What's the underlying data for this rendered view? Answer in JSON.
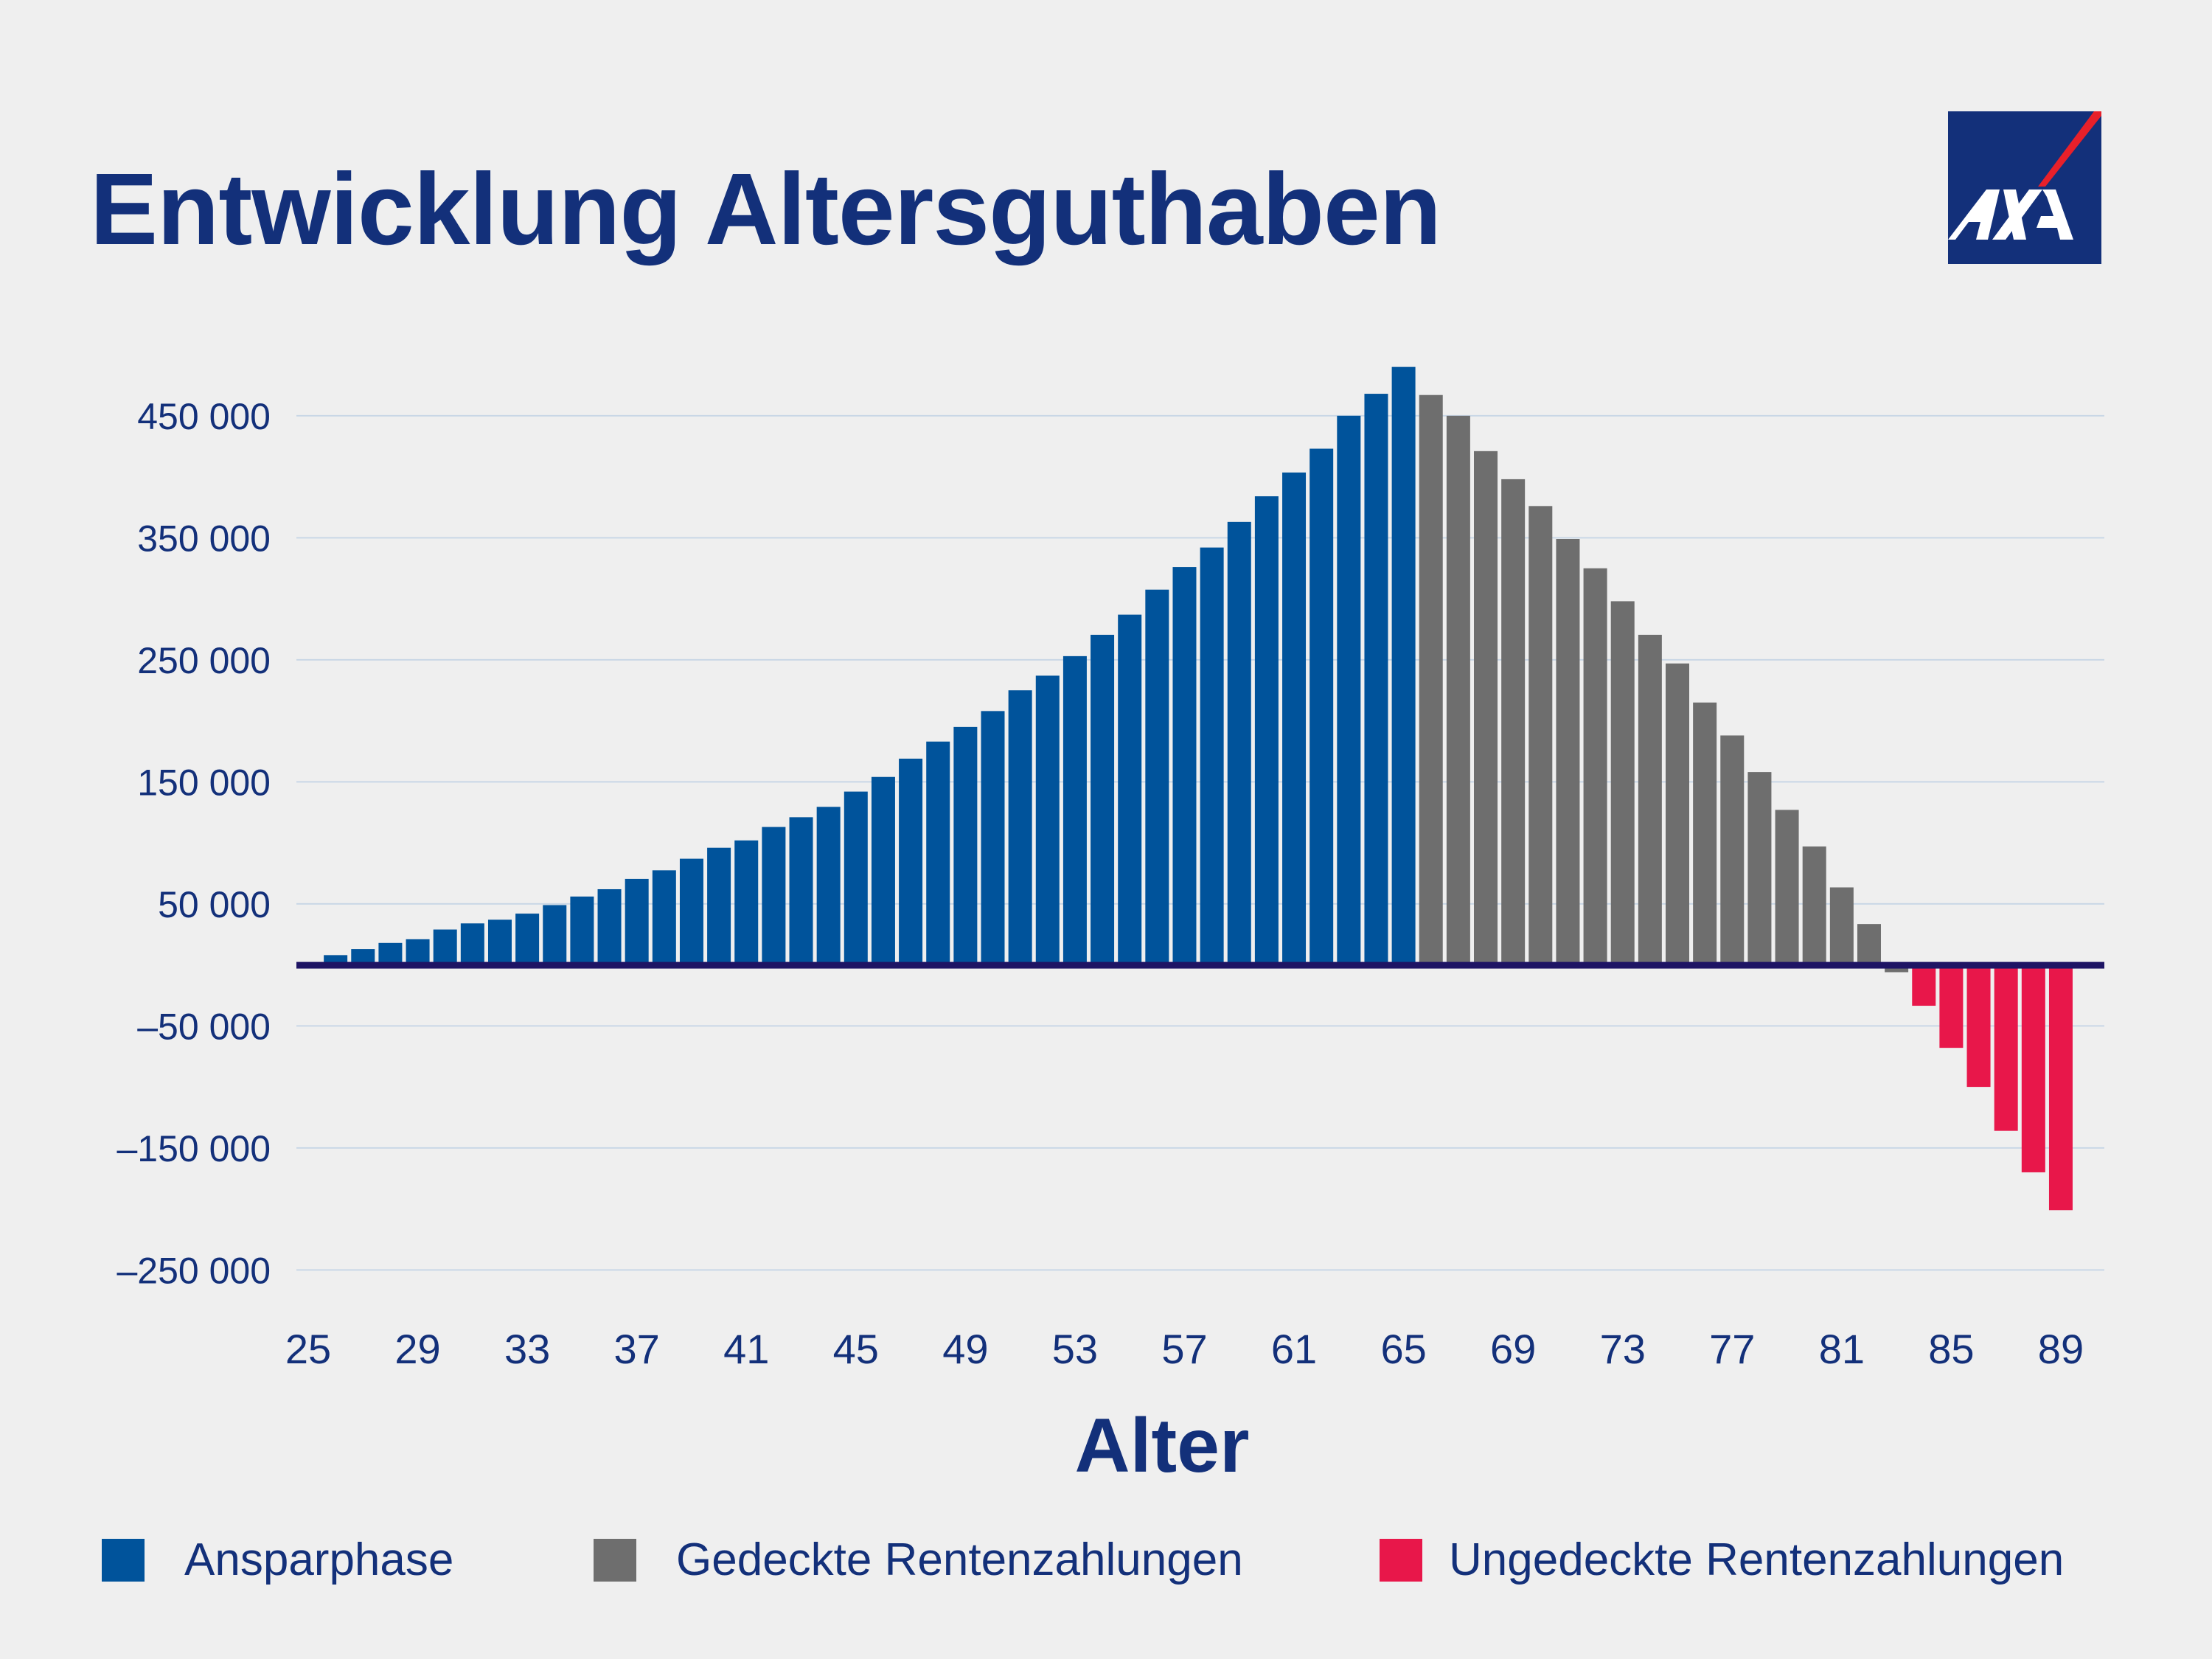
{
  "title": "Entwicklung Altersguthaben",
  "logo": {
    "text": "AXA",
    "colors": {
      "background": "#13307a",
      "slash": "#e8202a",
      "letters": "#ffffff"
    }
  },
  "chart_data": {
    "type": "bar",
    "title": "Entwicklung Altersguthaben",
    "xlabel": "Alter",
    "ylabel": "",
    "ylim": [
      -280000,
      500000
    ],
    "yticks": [
      450000,
      350000,
      250000,
      150000,
      50000,
      -50000,
      -150000,
      -250000
    ],
    "ytick_labels": [
      "450 000",
      "350 000",
      "250 000",
      "150 000",
      "50 000",
      "–50 000",
      "–150 000",
      "–250 000"
    ],
    "xtick_labels": [
      "25",
      "29",
      "33",
      "37",
      "41",
      "45",
      "49",
      "53",
      "57",
      "61",
      "65",
      "69",
      "73",
      "77",
      "81",
      "85",
      "89"
    ],
    "grid": true,
    "legend_position": "bottom",
    "series": [
      {
        "name": "Ansparphase",
        "color": "#00539b",
        "x": [
          25,
          26,
          27,
          28,
          29,
          30,
          31,
          32,
          33,
          34,
          35,
          36,
          37,
          38,
          39,
          40,
          41,
          42,
          43,
          44,
          45,
          46,
          47,
          48,
          49,
          50,
          51,
          52,
          53,
          54,
          55,
          56,
          57,
          58,
          59,
          60,
          61,
          62,
          63,
          64,
          65
        ],
        "values": [
          1000,
          8000,
          13000,
          18000,
          21000,
          29000,
          34000,
          37000,
          42000,
          49000,
          56000,
          62000,
          70500,
          77500,
          87000,
          96000,
          102000,
          113000,
          121000,
          129500,
          142000,
          154000,
          169000,
          183000,
          195000,
          208000,
          225000,
          237000,
          253000,
          270500,
          287000,
          307500,
          326000,
          342000,
          363000,
          384000,
          403500,
          423000,
          450000,
          468000,
          490000
        ]
      },
      {
        "name": "Gedeckte Rentenzahlungen",
        "color": "#6e6e6e",
        "x": [
          66,
          67,
          68,
          69,
          70,
          71,
          72,
          73,
          74,
          75,
          76,
          77,
          78,
          79,
          80,
          81,
          82,
          83
        ],
        "values": [
          467000,
          450000,
          421000,
          398000,
          376000,
          349000,
          325000,
          298000,
          270500,
          247000,
          215000,
          188000,
          158000,
          127000,
          97000,
          63500,
          33500,
          -6000
        ]
      },
      {
        "name": "Ungedeckte Rentenzahlungen",
        "color": "#e8174a",
        "x": [
          84,
          85,
          86,
          87,
          88,
          89
        ],
        "values": [
          -33500,
          -68000,
          -100000,
          -136000,
          -170000,
          -201000
        ]
      }
    ]
  }
}
